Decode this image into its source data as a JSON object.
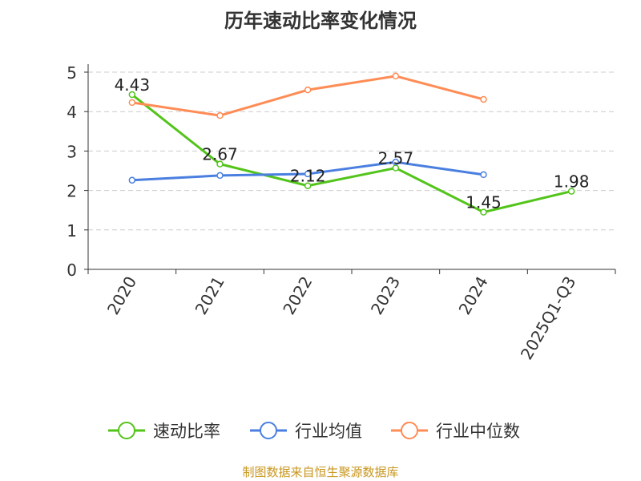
{
  "chart_data": {
    "type": "line",
    "title": "历年速动比率变化情况",
    "categories": [
      "2020",
      "2021",
      "2022",
      "2023",
      "2024",
      "2025Q1-Q3"
    ],
    "ylim": [
      0,
      5
    ],
    "yticks": [
      0,
      1,
      2,
      3,
      4,
      5
    ],
    "grid": true,
    "legend_position": "bottom",
    "series": [
      {
        "name": "速动比率",
        "color": "#52c41a",
        "values": [
          4.43,
          2.67,
          2.12,
          2.57,
          1.45,
          1.98
        ],
        "labels": [
          "4.43",
          "2.67",
          "2.12",
          "2.57",
          "1.45",
          "1.98"
        ]
      },
      {
        "name": "行业均值",
        "color": "#4a7fe0",
        "values": [
          2.26,
          2.38,
          2.42,
          2.72,
          2.4,
          null
        ]
      },
      {
        "name": "行业中位数",
        "color": "#ff8c55",
        "values": [
          4.23,
          3.9,
          4.55,
          4.9,
          4.31,
          null
        ]
      }
    ]
  },
  "source": "制图数据来自恒生聚源数据库"
}
